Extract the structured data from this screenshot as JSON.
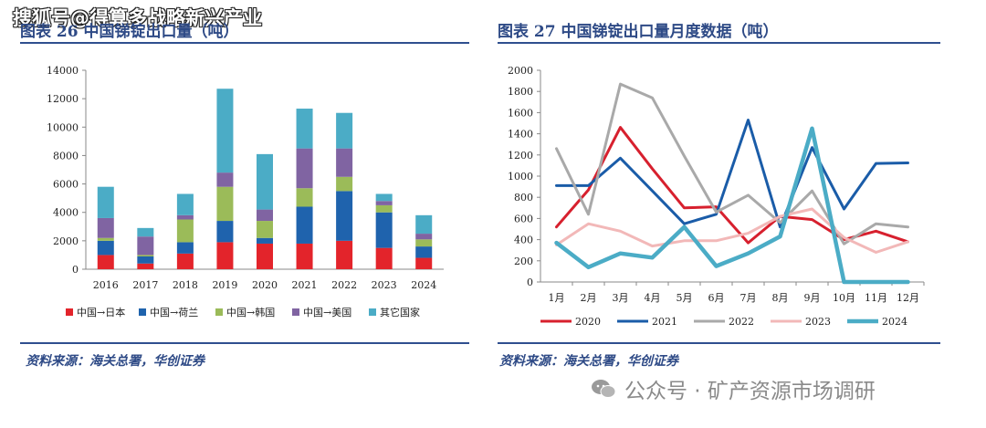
{
  "watermark_top": "搜狐号@得算多战略新兴产业",
  "watermark_bottom": "公众号 · 矿产资源市场调研",
  "left": {
    "title": "图表 26   中国锑锭出口量（吨）",
    "source": "资料来源：海关总署，华创证券"
  },
  "right": {
    "title": "图表 27   中国锑锭出口量月度数据（吨）",
    "source": "资料来源：海关总署，华创证券"
  },
  "chart_data": [
    {
      "type": "bar",
      "stacked": true,
      "title": "中国锑锭出口量（吨）",
      "categories": [
        "2016",
        "2017",
        "2018",
        "2019",
        "2020",
        "2021",
        "2022",
        "2023",
        "2024"
      ],
      "ylim": [
        0,
        14000
      ],
      "yticks": [
        0,
        2000,
        4000,
        6000,
        8000,
        10000,
        12000,
        14000
      ],
      "ytick_labels": [
        "0",
        "2000",
        "4000",
        "6000",
        "8000",
        "10000",
        "12000",
        "14000"
      ],
      "legend_position": "bottom",
      "series": [
        {
          "name": "中国→日本",
          "color": "#e3242b",
          "values": [
            1000,
            400,
            1100,
            1900,
            1800,
            1800,
            2000,
            1500,
            800
          ]
        },
        {
          "name": "中国→荷兰",
          "color": "#1f63ad",
          "values": [
            1000,
            500,
            800,
            1500,
            400,
            2600,
            3500,
            2500,
            800
          ]
        },
        {
          "name": "中国→韩国",
          "color": "#9bbb59",
          "values": [
            200,
            100,
            1600,
            2400,
            1200,
            1300,
            1000,
            500,
            500
          ]
        },
        {
          "name": "中国→美国",
          "color": "#8064a2",
          "values": [
            1400,
            1300,
            300,
            1000,
            800,
            2800,
            2000,
            300,
            400
          ]
        },
        {
          "name": "其它国家",
          "color": "#4bacc6",
          "values": [
            2200,
            600,
            1500,
            5900,
            3900,
            2800,
            2500,
            500,
            1300
          ]
        }
      ]
    },
    {
      "type": "line",
      "title": "中国锑锭出口量月度数据（吨）",
      "categories": [
        "1月",
        "2月",
        "3月",
        "4月",
        "5月",
        "6月",
        "7月",
        "8月",
        "9月",
        "10月",
        "11月",
        "12月"
      ],
      "ylim": [
        0,
        2000
      ],
      "yticks": [
        0,
        200,
        400,
        600,
        800,
        1000,
        1200,
        1400,
        1600,
        1800,
        2000
      ],
      "ytick_labels": [
        "0",
        "200",
        "400",
        "600",
        "800",
        "1000",
        "1200",
        "1400",
        "1600",
        "1800",
        "2000"
      ],
      "legend_position": "bottom",
      "series": [
        {
          "name": "2020",
          "color": "#d7202e",
          "width": 3,
          "values": [
            520,
            870,
            1460,
            1070,
            700,
            710,
            370,
            620,
            590,
            400,
            480,
            380
          ]
        },
        {
          "name": "2021",
          "color": "#1a5ca8",
          "width": 3,
          "values": [
            910,
            910,
            1170,
            860,
            550,
            640,
            1530,
            520,
            1270,
            690,
            1120,
            1125
          ]
        },
        {
          "name": "2022",
          "color": "#a9a9a9",
          "width": 3,
          "values": [
            1260,
            640,
            1870,
            1740,
            1190,
            660,
            820,
            560,
            860,
            360,
            550,
            520
          ]
        },
        {
          "name": "2023",
          "color": "#f2b8b8",
          "width": 3,
          "values": [
            350,
            550,
            480,
            340,
            390,
            390,
            460,
            620,
            690,
            420,
            280,
            380
          ]
        },
        {
          "name": "2024",
          "color": "#4bacc6",
          "width": 4.5,
          "values": [
            370,
            140,
            270,
            230,
            520,
            150,
            270,
            430,
            1450,
            0,
            0,
            0
          ]
        }
      ]
    }
  ]
}
